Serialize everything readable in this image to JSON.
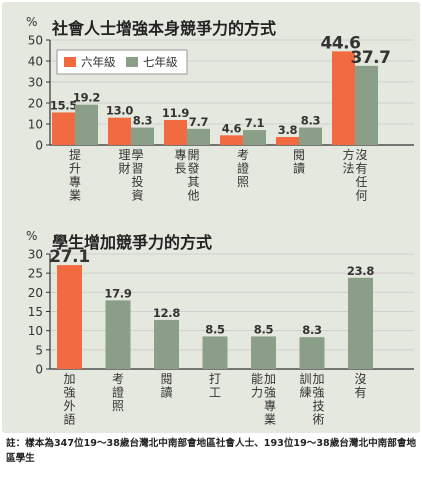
{
  "footnote": "註：樣本為347位19～38歲台灣北中南部會地區社會人士、193位19～38歲台灣北中南部會地區學生",
  "colors": {
    "series_a": "#f26a3f",
    "series_b": "#8a9e88",
    "background": "#e5e8df"
  },
  "chart_data": [
    {
      "type": "bar",
      "title": "社會人士增強本身競爭力的方式",
      "ylabel": "%",
      "ylim": [
        0,
        50
      ],
      "yticks": [
        0,
        10,
        20,
        30,
        40,
        50
      ],
      "legend_position": "top-left",
      "categories": [
        [
          "提升專業"
        ],
        [
          "理財",
          "學習投資"
        ],
        [
          "專長",
          "開發其他"
        ],
        [
          "考證照"
        ],
        [
          "閱讀"
        ],
        [
          "方法",
          "沒有任何"
        ]
      ],
      "series": [
        {
          "name": "六年級",
          "values": [
            15.5,
            13.0,
            11.9,
            4.6,
            3.8,
            44.6
          ]
        },
        {
          "name": "七年級",
          "values": [
            19.2,
            8.3,
            7.7,
            7.1,
            8.3,
            37.7
          ]
        }
      ],
      "value_labels": [
        [
          "15.5",
          "13.0",
          "11.9",
          "4.6",
          "3.8",
          "44.6"
        ],
        [
          "19.2",
          "8.3",
          "7.7",
          "7.1",
          "8.3",
          "37.7"
        ]
      ]
    },
    {
      "type": "bar",
      "title": "學生增加競爭力的方式",
      "ylabel": "%",
      "ylim": [
        0,
        30
      ],
      "yticks": [
        0,
        5,
        10,
        15,
        20,
        25,
        30
      ],
      "categories": [
        [
          "加強外語"
        ],
        [
          "考證照"
        ],
        [
          "閱讀"
        ],
        [
          "打工"
        ],
        [
          "能力",
          "加強專業"
        ],
        [
          "訓練",
          "加強技術"
        ],
        [
          "沒有"
        ]
      ],
      "values": [
        27.1,
        17.9,
        12.8,
        8.5,
        8.5,
        8.3,
        23.8
      ],
      "value_labels": [
        "27.1",
        "17.9",
        "12.8",
        "8.5",
        "8.5",
        "8.3",
        "23.8"
      ]
    }
  ]
}
